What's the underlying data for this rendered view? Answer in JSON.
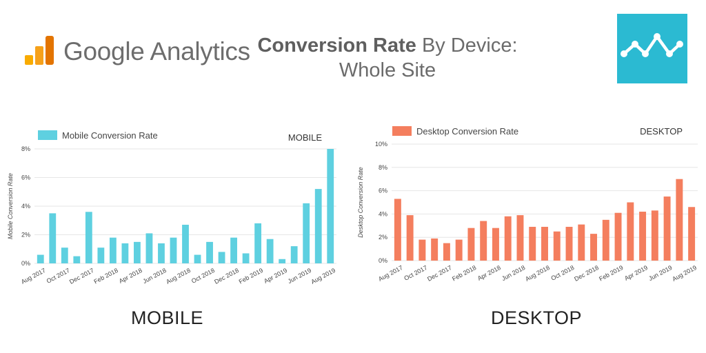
{
  "header": {
    "logo_text": "Google Analytics",
    "title_bold": "Conversion Rate",
    "title_rest": " By Device:",
    "title_line2": "Whole Site",
    "brand_icon": "line-peaks-icon",
    "brand_color": "#2bbad2"
  },
  "labels": {
    "mobile": "MOBILE",
    "desktop": "DESKTOP"
  },
  "chart_data": [
    {
      "type": "bar",
      "legend": "Mobile Conversion Rate",
      "corner_label": "MOBILE",
      "ylabel": "Mobile Conversion Rate",
      "color": "#5ed0e0",
      "ylim": [
        0,
        8
      ],
      "yticks": [
        "0%",
        "2%",
        "4%",
        "6%",
        "8%"
      ],
      "xticks": [
        "Aug 2017",
        "Oct 2017",
        "Dec 2017",
        "Feb 2018",
        "Apr 2018",
        "Jun 2018",
        "Aug 2018",
        "Oct 2018",
        "Dec 2018",
        "Feb 2019",
        "Apr 2019",
        "Jun 2019",
        "Aug 2019"
      ],
      "categories": [
        "Aug 2017",
        "Sep 2017",
        "Oct 2017",
        "Nov 2017",
        "Dec 2017",
        "Jan 2018",
        "Feb 2018",
        "Mar 2018",
        "Apr 2018",
        "May 2018",
        "Jun 2018",
        "Jul 2018",
        "Aug 2018",
        "Sep 2018",
        "Oct 2018",
        "Nov 2018",
        "Dec 2018",
        "Jan 2019",
        "Feb 2019",
        "Mar 2019",
        "Apr 2019",
        "May 2019",
        "Jun 2019",
        "Jul 2019",
        "Aug 2019"
      ],
      "values": [
        0.6,
        3.5,
        1.1,
        0.5,
        3.6,
        1.1,
        1.8,
        1.4,
        1.5,
        2.1,
        1.4,
        1.8,
        2.7,
        0.6,
        1.5,
        0.8,
        1.8,
        0.7,
        2.8,
        1.7,
        0.3,
        1.2,
        4.2,
        5.2,
        8.0
      ]
    },
    {
      "type": "bar",
      "legend": "Desktop Conversion Rate",
      "corner_label": "DESKTOP",
      "ylabel": "Desktop Conversion Rate",
      "color": "#f47e5e",
      "ylim": [
        0,
        10
      ],
      "yticks": [
        "0%",
        "2%",
        "4%",
        "6%",
        "8%",
        "10%"
      ],
      "xticks": [
        "Aug 2017",
        "Oct 2017",
        "Dec 2017",
        "Feb 2018",
        "Apr 2018",
        "Jun 2018",
        "Aug 2018",
        "Oct 2018",
        "Dec 2018",
        "Feb 2019",
        "Apr 2019",
        "Jun 2019",
        "Aug 2019"
      ],
      "categories": [
        "Aug 2017",
        "Sep 2017",
        "Oct 2017",
        "Nov 2017",
        "Dec 2017",
        "Jan 2018",
        "Feb 2018",
        "Mar 2018",
        "Apr 2018",
        "May 2018",
        "Jun 2018",
        "Jul 2018",
        "Aug 2018",
        "Sep 2018",
        "Oct 2018",
        "Nov 2018",
        "Dec 2018",
        "Jan 2019",
        "Feb 2019",
        "Mar 2019",
        "Apr 2019",
        "May 2019",
        "Jun 2019",
        "Jul 2019",
        "Aug 2019"
      ],
      "values": [
        5.3,
        3.9,
        1.8,
        1.9,
        1.5,
        1.8,
        2.8,
        3.4,
        2.8,
        3.8,
        3.9,
        2.9,
        2.9,
        2.5,
        2.9,
        3.1,
        2.3,
        3.5,
        4.1,
        5.0,
        4.2,
        4.3,
        5.5,
        7.0,
        4.6
      ]
    }
  ]
}
